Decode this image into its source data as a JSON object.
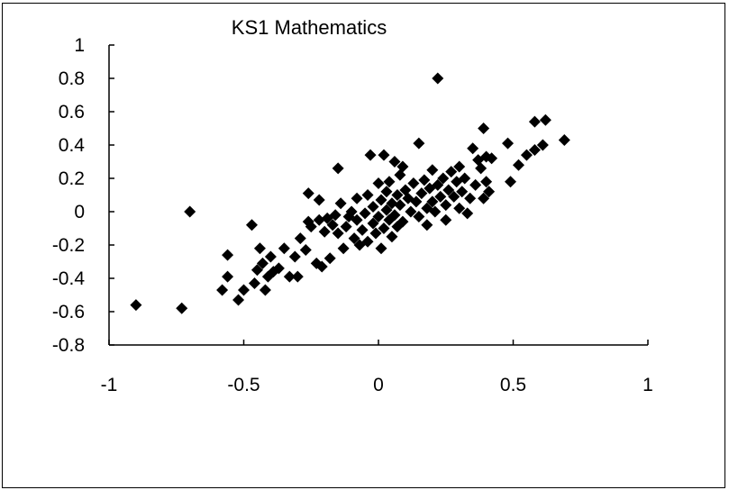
{
  "chart_data": {
    "type": "scatter",
    "title": "KS1 Mathematics",
    "xlabel": "",
    "ylabel": "",
    "xlim": [
      -1,
      1
    ],
    "ylim": [
      -0.8,
      1
    ],
    "xticks": [
      -1,
      -0.5,
      0,
      0.5,
      1
    ],
    "yticks": [
      1,
      0.8,
      0.6,
      0.4,
      0.2,
      0,
      -0.2,
      -0.4,
      -0.6,
      -0.8
    ],
    "xtick_labels": [
      "-1",
      "-0.5",
      "0",
      "0.5",
      "1"
    ],
    "ytick_labels": [
      "1",
      "0.8",
      "0.6",
      "0.4",
      "0.2",
      "0",
      "-0.2",
      "-0.4",
      "-0.6",
      "-0.8"
    ],
    "grid": false,
    "marker": "diamond",
    "marker_color": "#000000",
    "points": [
      [
        -0.9,
        -0.56
      ],
      [
        -0.73,
        -0.58
      ],
      [
        -0.7,
        0.0
      ],
      [
        -0.58,
        -0.47
      ],
      [
        -0.56,
        -0.39
      ],
      [
        -0.56,
        -0.26
      ],
      [
        -0.52,
        -0.53
      ],
      [
        -0.5,
        -0.47
      ],
      [
        -0.47,
        -0.08
      ],
      [
        -0.46,
        -0.43
      ],
      [
        -0.45,
        -0.35
      ],
      [
        -0.44,
        -0.22
      ],
      [
        -0.43,
        -0.31
      ],
      [
        -0.42,
        -0.47
      ],
      [
        -0.41,
        -0.39
      ],
      [
        -0.4,
        -0.27
      ],
      [
        -0.39,
        -0.36
      ],
      [
        -0.37,
        -0.34
      ],
      [
        -0.35,
        -0.22
      ],
      [
        -0.33,
        -0.39
      ],
      [
        -0.31,
        -0.27
      ],
      [
        -0.3,
        -0.39
      ],
      [
        -0.29,
        -0.16
      ],
      [
        -0.27,
        -0.23
      ],
      [
        -0.26,
        -0.06
      ],
      [
        -0.26,
        0.11
      ],
      [
        -0.25,
        -0.09
      ],
      [
        -0.23,
        -0.31
      ],
      [
        -0.22,
        0.07
      ],
      [
        -0.22,
        -0.05
      ],
      [
        -0.21,
        -0.33
      ],
      [
        -0.2,
        -0.12
      ],
      [
        -0.19,
        -0.04
      ],
      [
        -0.18,
        -0.28
      ],
      [
        -0.17,
        -0.08
      ],
      [
        -0.16,
        -0.02
      ],
      [
        -0.15,
        0.26
      ],
      [
        -0.15,
        -0.13
      ],
      [
        -0.14,
        0.05
      ],
      [
        -0.13,
        -0.22
      ],
      [
        -0.12,
        -0.09
      ],
      [
        -0.11,
        -0.03
      ],
      [
        -0.1,
        0.0
      ],
      [
        -0.09,
        -0.16
      ],
      [
        -0.08,
        0.08
      ],
      [
        -0.08,
        -0.05
      ],
      [
        -0.07,
        -0.2
      ],
      [
        -0.06,
        -0.11
      ],
      [
        -0.05,
        -0.01
      ],
      [
        -0.04,
        0.1
      ],
      [
        -0.04,
        -0.18
      ],
      [
        -0.03,
        0.34
      ],
      [
        -0.02,
        -0.07
      ],
      [
        -0.02,
        0.03
      ],
      [
        -0.01,
        -0.13
      ],
      [
        0.0,
        0.17
      ],
      [
        0.0,
        -0.03
      ],
      [
        0.01,
        0.07
      ],
      [
        0.01,
        -0.22
      ],
      [
        0.02,
        0.34
      ],
      [
        0.02,
        -0.1
      ],
      [
        0.03,
        0.12
      ],
      [
        0.03,
        0.01
      ],
      [
        0.04,
        -0.05
      ],
      [
        0.04,
        0.18
      ],
      [
        0.05,
        -0.15
      ],
      [
        0.05,
        0.05
      ],
      [
        0.06,
        0.3
      ],
      [
        0.06,
        -0.02
      ],
      [
        0.07,
        0.1
      ],
      [
        0.07,
        -0.09
      ],
      [
        0.08,
        0.22
      ],
      [
        0.08,
        0.04
      ],
      [
        0.09,
        0.27
      ],
      [
        0.09,
        -0.06
      ],
      [
        0.1,
        0.13
      ],
      [
        0.11,
        0.08
      ],
      [
        0.12,
        0.0
      ],
      [
        0.13,
        0.17
      ],
      [
        0.14,
        0.06
      ],
      [
        0.15,
        0.41
      ],
      [
        0.15,
        -0.03
      ],
      [
        0.16,
        0.11
      ],
      [
        0.17,
        0.19
      ],
      [
        0.18,
        -0.08
      ],
      [
        0.18,
        0.02
      ],
      [
        0.19,
        0.14
      ],
      [
        0.2,
        0.25
      ],
      [
        0.2,
        0.06
      ],
      [
        0.21,
        0.0
      ],
      [
        0.22,
        0.8
      ],
      [
        0.22,
        0.16
      ],
      [
        0.23,
        0.09
      ],
      [
        0.24,
        0.2
      ],
      [
        0.25,
        -0.05
      ],
      [
        0.25,
        0.04
      ],
      [
        0.26,
        0.13
      ],
      [
        0.27,
        0.24
      ],
      [
        0.28,
        0.09
      ],
      [
        0.29,
        0.18
      ],
      [
        0.3,
        0.02
      ],
      [
        0.3,
        0.27
      ],
      [
        0.31,
        0.12
      ],
      [
        0.32,
        0.2
      ],
      [
        0.33,
        -0.01
      ],
      [
        0.34,
        0.08
      ],
      [
        0.35,
        0.38
      ],
      [
        0.36,
        0.16
      ],
      [
        0.37,
        0.31
      ],
      [
        0.38,
        0.26
      ],
      [
        0.39,
        0.5
      ],
      [
        0.39,
        0.08
      ],
      [
        0.4,
        0.18
      ],
      [
        0.4,
        0.33
      ],
      [
        0.41,
        0.12
      ],
      [
        0.42,
        0.32
      ],
      [
        0.48,
        0.41
      ],
      [
        0.49,
        0.18
      ],
      [
        0.52,
        0.28
      ],
      [
        0.55,
        0.34
      ],
      [
        0.58,
        0.54
      ],
      [
        0.58,
        0.37
      ],
      [
        0.61,
        0.4
      ],
      [
        0.62,
        0.55
      ],
      [
        0.69,
        0.43
      ]
    ]
  }
}
